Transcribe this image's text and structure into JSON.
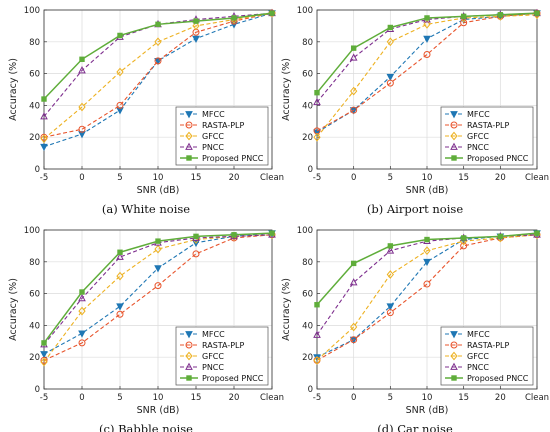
{
  "chart_data": [
    {
      "type": "line",
      "caption": "(a) White noise",
      "xlabel": "SNR (dB)",
      "ylabel": "Accuracy (%)",
      "categories": [
        "-5",
        "0",
        "5",
        "10",
        "15",
        "20",
        "Clean"
      ],
      "ylim": [
        0,
        100
      ],
      "yticks": [
        0,
        20,
        40,
        60,
        80,
        100
      ],
      "grid": true,
      "legend": "bottom-right",
      "series": [
        {
          "name": "MFCC",
          "values": [
            14,
            22,
            37,
            68,
            82,
            91,
            98
          ],
          "color": "#1f77b4",
          "marker": "triangle-down"
        },
        {
          "name": "RASTA-PLP",
          "values": [
            20,
            25,
            40,
            68,
            86,
            93,
            98
          ],
          "color": "#e8542c",
          "marker": "circle"
        },
        {
          "name": "GFCC",
          "values": [
            19,
            39,
            61,
            80,
            90,
            94,
            98
          ],
          "color": "#edb120",
          "marker": "diamond"
        },
        {
          "name": "PNCC",
          "values": [
            33,
            62,
            83,
            91,
            94,
            96,
            98
          ],
          "color": "#7e2f8e",
          "marker": "triangle-up"
        },
        {
          "name": "Proposed PNCC",
          "values": [
            44,
            69,
            84,
            91,
            93,
            95,
            98
          ],
          "color": "#5fad3a",
          "marker": "square"
        }
      ]
    },
    {
      "type": "line",
      "caption": "(b) Airport noise",
      "xlabel": "SNR (dB)",
      "ylabel": "Accuracy (%)",
      "categories": [
        "-5",
        "0",
        "5",
        "10",
        "15",
        "20",
        "Clean"
      ],
      "ylim": [
        0,
        100
      ],
      "yticks": [
        0,
        20,
        40,
        60,
        80,
        100
      ],
      "grid": true,
      "legend": "bottom-right",
      "series": [
        {
          "name": "MFCC",
          "values": [
            23,
            37,
            58,
            82,
            94,
            96,
            98
          ],
          "color": "#1f77b4",
          "marker": "triangle-down"
        },
        {
          "name": "RASTA-PLP",
          "values": [
            24,
            37,
            54,
            72,
            92,
            96,
            98
          ],
          "color": "#e8542c",
          "marker": "circle"
        },
        {
          "name": "GFCC",
          "values": [
            20,
            49,
            80,
            91,
            95,
            96,
            97
          ],
          "color": "#edb120",
          "marker": "diamond"
        },
        {
          "name": "PNCC",
          "values": [
            42,
            70,
            88,
            94,
            96,
            97,
            98
          ],
          "color": "#7e2f8e",
          "marker": "triangle-up"
        },
        {
          "name": "Proposed PNCC",
          "values": [
            48,
            76,
            89,
            95,
            96,
            97,
            98
          ],
          "color": "#5fad3a",
          "marker": "square"
        }
      ]
    },
    {
      "type": "line",
      "caption": "(c) Babble noise",
      "xlabel": "SNR (dB)",
      "ylabel": "Accuracy (%)",
      "categories": [
        "-5",
        "0",
        "5",
        "10",
        "15",
        "20",
        "Clean"
      ],
      "ylim": [
        0,
        100
      ],
      "yticks": [
        0,
        20,
        40,
        60,
        80,
        100
      ],
      "grid": true,
      "legend": "bottom-right",
      "series": [
        {
          "name": "MFCC",
          "values": [
            22,
            35,
            52,
            76,
            92,
            96,
            98
          ],
          "color": "#1f77b4",
          "marker": "triangle-down"
        },
        {
          "name": "RASTA-PLP",
          "values": [
            18,
            29,
            47,
            65,
            85,
            95,
            97
          ],
          "color": "#e8542c",
          "marker": "circle"
        },
        {
          "name": "GFCC",
          "values": [
            17,
            49,
            71,
            88,
            94,
            96,
            97
          ],
          "color": "#edb120",
          "marker": "diamond"
        },
        {
          "name": "PNCC",
          "values": [
            28,
            57,
            83,
            92,
            95,
            96,
            97
          ],
          "color": "#7e2f8e",
          "marker": "triangle-up"
        },
        {
          "name": "Proposed PNCC",
          "values": [
            29,
            61,
            86,
            93,
            96,
            97,
            98
          ],
          "color": "#5fad3a",
          "marker": "square"
        }
      ]
    },
    {
      "type": "line",
      "caption": "(d) Car noise",
      "xlabel": "SNR (dB)",
      "ylabel": "Accuracy (%)",
      "categories": [
        "-5",
        "0",
        "5",
        "10",
        "15",
        "20",
        "Clean"
      ],
      "ylim": [
        0,
        100
      ],
      "yticks": [
        0,
        20,
        40,
        60,
        80,
        100
      ],
      "grid": true,
      "legend": "bottom-right",
      "series": [
        {
          "name": "MFCC",
          "values": [
            20,
            31,
            52,
            80,
            94,
            96,
            98
          ],
          "color": "#1f77b4",
          "marker": "triangle-down"
        },
        {
          "name": "RASTA-PLP",
          "values": [
            18,
            31,
            48,
            66,
            90,
            95,
            97
          ],
          "color": "#e8542c",
          "marker": "circle"
        },
        {
          "name": "GFCC",
          "values": [
            18,
            39,
            72,
            87,
            93,
            95,
            97
          ],
          "color": "#edb120",
          "marker": "diamond"
        },
        {
          "name": "PNCC",
          "values": [
            34,
            67,
            87,
            93,
            95,
            96,
            97
          ],
          "color": "#7e2f8e",
          "marker": "triangle-up"
        },
        {
          "name": "Proposed PNCC",
          "values": [
            53,
            79,
            90,
            94,
            95,
            96,
            98
          ],
          "color": "#5fad3a",
          "marker": "square"
        }
      ]
    }
  ]
}
